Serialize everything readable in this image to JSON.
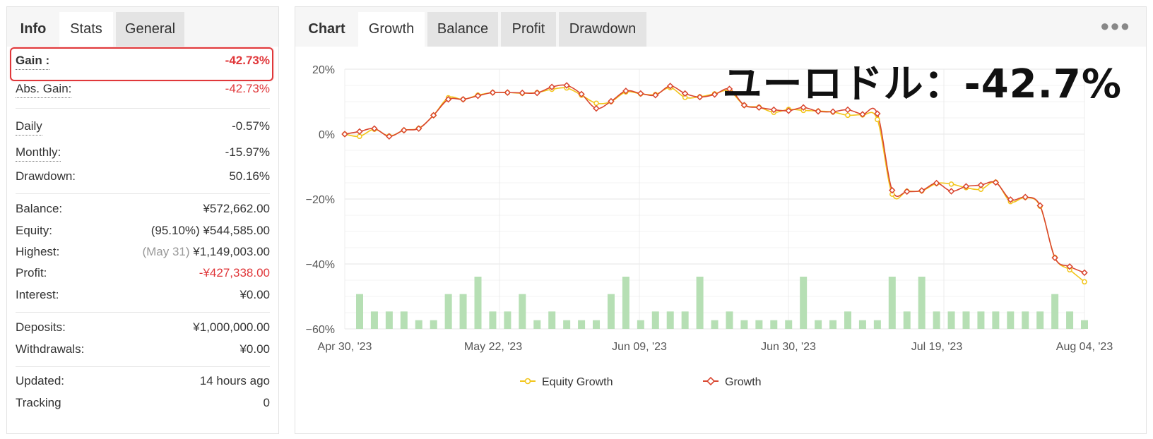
{
  "info_panel": {
    "tabs": [
      {
        "label": "Info"
      },
      {
        "label": "Stats"
      },
      {
        "label": "General"
      }
    ],
    "rows": {
      "gain": {
        "label": "Gain :",
        "value": "-42.73%"
      },
      "abs_gain": {
        "label": "Abs. Gain:",
        "value": "-42.73%"
      },
      "daily": {
        "label": "Daily",
        "value": "-0.57%"
      },
      "monthly": {
        "label": "Monthly:",
        "value": "-15.97%"
      },
      "drawdown": {
        "label": "Drawdown:",
        "value": "50.16%"
      },
      "balance": {
        "label": "Balance:",
        "value": "¥572,662.00"
      },
      "equity": {
        "label": "Equity:",
        "note": "(95.10%)",
        "value": "¥544,585.00"
      },
      "highest": {
        "label": "Highest:",
        "note": "(May 31)",
        "value": "¥1,149,003.00"
      },
      "profit": {
        "label": "Profit:",
        "value": "-¥427,338.00"
      },
      "interest": {
        "label": "Interest:",
        "value": "¥0.00"
      },
      "deposits": {
        "label": "Deposits:",
        "value": "¥1,000,000.00"
      },
      "withdrawals": {
        "label": "Withdrawals:",
        "value": "¥0.00"
      },
      "updated": {
        "label": "Updated:",
        "value": "14 hours ago"
      },
      "tracking": {
        "label": "Tracking",
        "value": "0"
      }
    },
    "colors": {
      "negative": "#e0373a",
      "highlight_border": "#e0373a"
    }
  },
  "chart_panel": {
    "tabs": [
      {
        "label": "Chart"
      },
      {
        "label": "Growth"
      },
      {
        "label": "Balance"
      },
      {
        "label": "Profit"
      },
      {
        "label": "Drawdown"
      }
    ],
    "more_icon": "more-horizontal-icon",
    "overlay_title": "ユーロドル：-42.7%"
  },
  "chart_data": {
    "type": "line",
    "x_tick_labels": [
      "Apr 30, '23",
      "May 22, '23",
      "Jun 09, '23",
      "Jun 30, '23",
      "Jul 19, '23",
      "Aug 04, '23"
    ],
    "y_tick_labels": [
      "20%",
      "0%",
      "−20%",
      "−40%",
      "−60%"
    ],
    "ylim": [
      -60,
      20
    ],
    "grid": true,
    "legend_placement": "bottom",
    "series": [
      {
        "name": "Equity Growth",
        "color": "#f2c51b",
        "values": [
          0,
          -0.7,
          1.5,
          -0.6,
          1.2,
          1.8,
          5.8,
          11.2,
          10.7,
          12.0,
          12.8,
          12.8,
          12.6,
          12.8,
          13.8,
          14.2,
          12.0,
          9.5,
          10.0,
          13.0,
          12.4,
          12.2,
          14.3,
          11.3,
          11.5,
          12.4,
          13.3,
          8.9,
          8.3,
          6.7,
          7.6,
          7.3,
          7.1,
          6.8,
          5.8,
          5.9,
          4.5,
          -18.5,
          -17.6,
          -17.5,
          -15.2,
          -15.4,
          -16.5,
          -17.0,
          -14.8,
          -20.8,
          -19.5,
          -22.2,
          -38.0,
          -41.8,
          -45.5
        ]
      },
      {
        "name": "Growth",
        "color": "#d9452f",
        "values": [
          0,
          0.8,
          1.7,
          -0.7,
          1.2,
          1.7,
          5.8,
          10.7,
          10.7,
          11.8,
          12.8,
          12.8,
          12.7,
          12.7,
          14.5,
          15.0,
          12.3,
          7.9,
          10.1,
          13.3,
          12.5,
          12.0,
          14.8,
          12.5,
          11.4,
          12.2,
          13.9,
          8.9,
          8.2,
          7.5,
          7.2,
          8.2,
          7.0,
          6.9,
          7.5,
          6.1,
          6.3,
          -17.3,
          -17.7,
          -17.4,
          -15.1,
          -17.6,
          -16.1,
          -15.7,
          -14.9,
          -20.2,
          -19.4,
          -22.0,
          -38.1,
          -40.8,
          -42.7
        ]
      }
    ],
    "bars": {
      "color": "#b6dfb4",
      "values": [
        2,
        1,
        1,
        1,
        0.5,
        0.5,
        2,
        2,
        3,
        1,
        1,
        2,
        0.5,
        1,
        0.5,
        0.5,
        0.5,
        2,
        3,
        0.5,
        1,
        1,
        1,
        3,
        0.5,
        1,
        0.5,
        0.5,
        0.5,
        0.5,
        3,
        0.5,
        0.5,
        1,
        0.5,
        0.5,
        3,
        1,
        3,
        1,
        1,
        1,
        1,
        1,
        1,
        1,
        1,
        2,
        1,
        0.5
      ]
    }
  }
}
